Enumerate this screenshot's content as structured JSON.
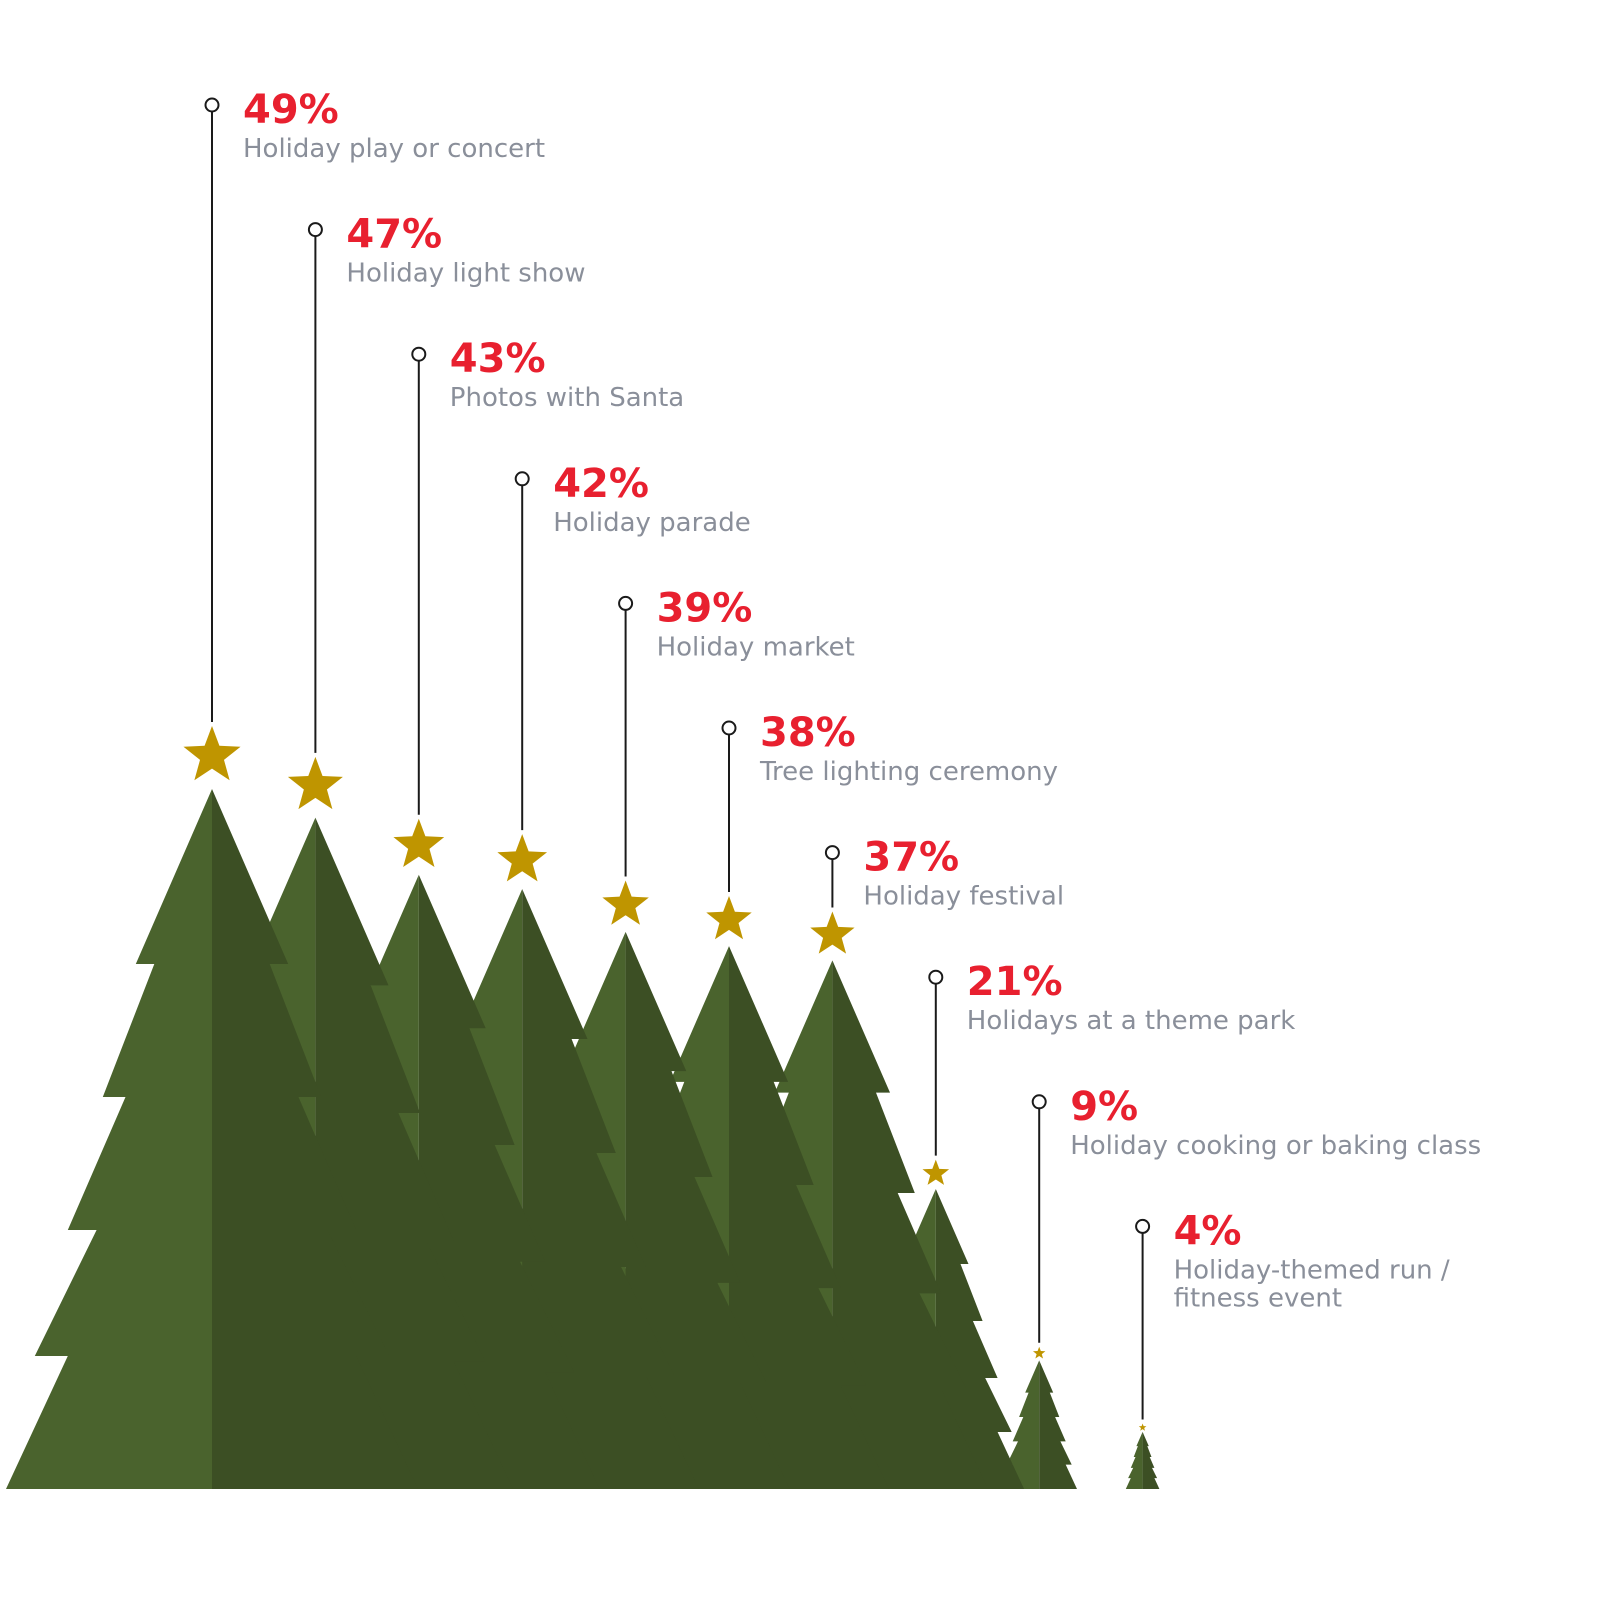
{
  "chart_data": {
    "type": "bar",
    "title": "",
    "xlabel": "",
    "ylabel": "",
    "ylim": [
      0,
      49
    ],
    "grid": false,
    "categories": [
      "Holiday play or concert",
      "Holiday light show",
      "Photos with Santa",
      "Holiday parade",
      "Holiday market",
      "Tree lighting ceremony",
      "Holiday festival",
      "Holidays at a theme park",
      "Holiday cooking or baking class",
      "Holiday-themed run / fitness event"
    ],
    "values": [
      49,
      47,
      43,
      42,
      39,
      38,
      37,
      21,
      9,
      4
    ],
    "value_labels": [
      "49%",
      "47%",
      "43%",
      "42%",
      "39%",
      "38%",
      "37%",
      "21%",
      "9%",
      "4%"
    ],
    "label_lines": [
      [
        "Holiday play or concert"
      ],
      [
        "Holiday light show"
      ],
      [
        "Photos with Santa"
      ],
      [
        "Holiday parade"
      ],
      [
        "Holiday market"
      ],
      [
        "Tree lighting ceremony"
      ],
      [
        "Holiday festival"
      ],
      [
        "Holidays at a theme park"
      ],
      [
        "Holiday cooking or baking class"
      ],
      [
        "Holiday-themed run /",
        "fitness event"
      ]
    ]
  },
  "colors": {
    "tree_light": "#4a632d",
    "tree_dark": "#3c4f24",
    "star": "#bf9500",
    "percent": "#e8202f",
    "label": "#8a8f9a",
    "leader": "#1a1a1a"
  },
  "icons": {
    "mark": "tree-icon",
    "topper": "star-icon",
    "leader_end": "circle-icon"
  }
}
